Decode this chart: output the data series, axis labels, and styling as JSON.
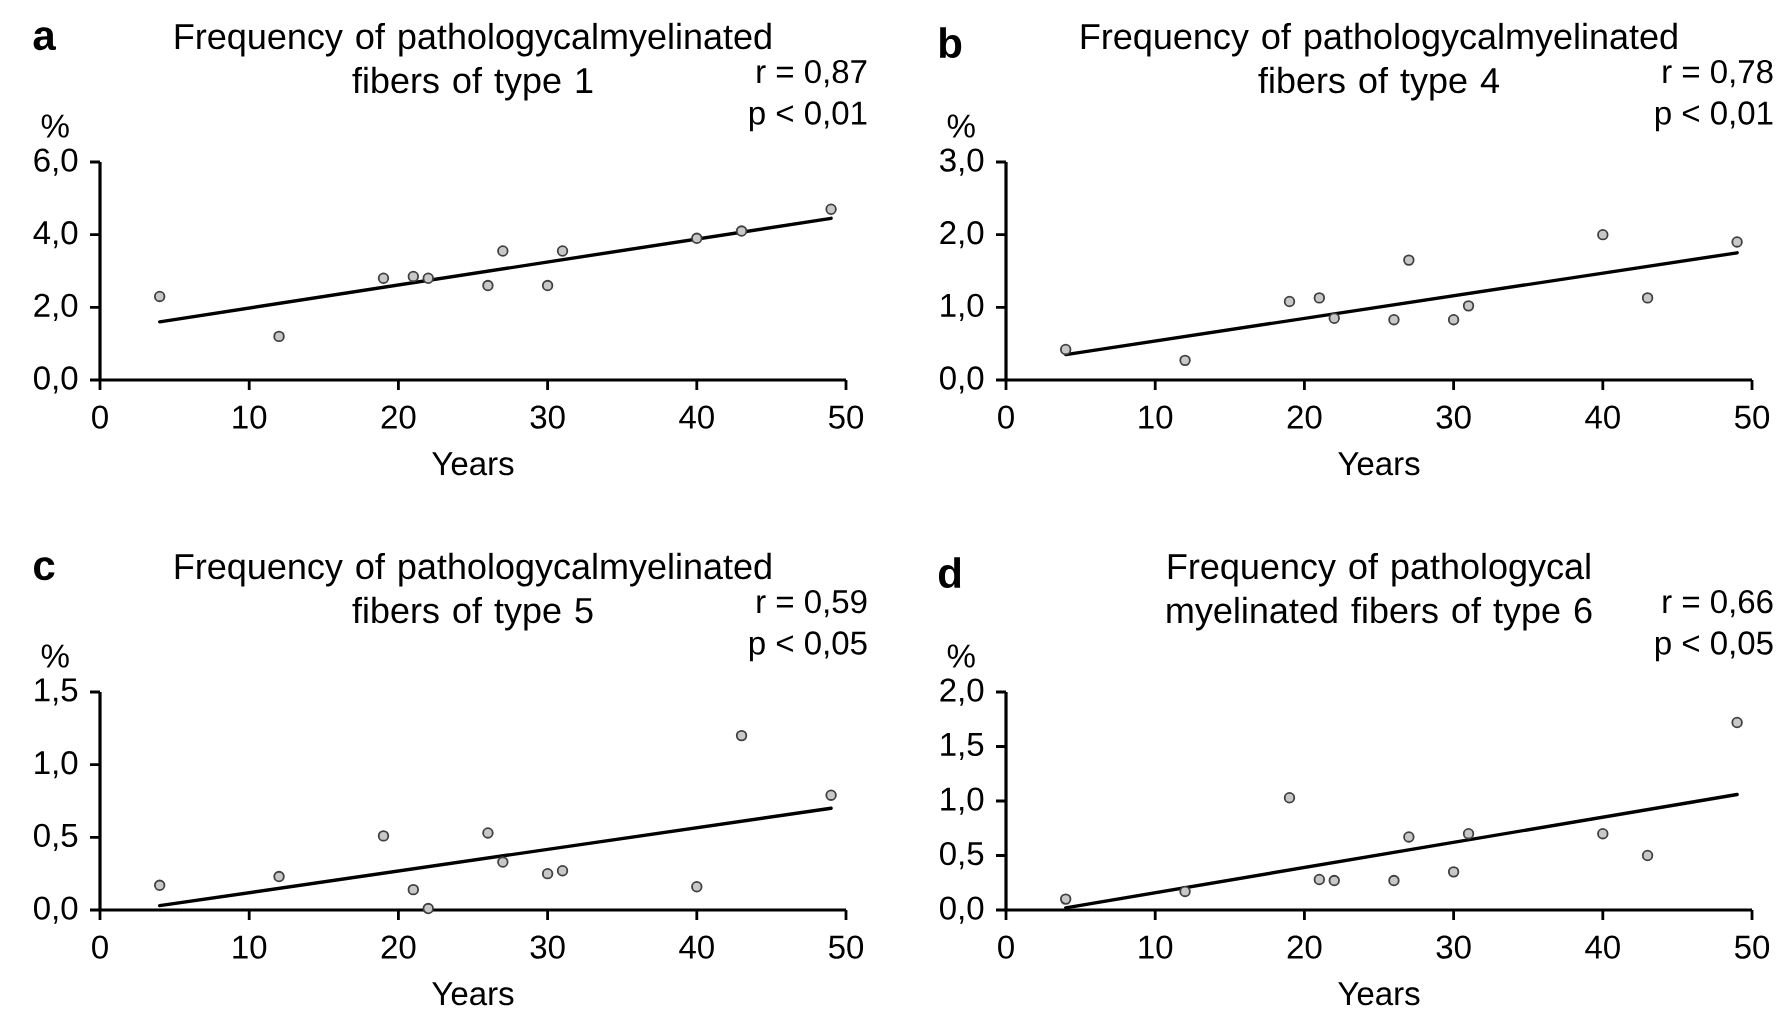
{
  "chart_data": [
    {
      "type": "scatter",
      "title": "Frequency of pathologycalmyelinated fibers of type 1",
      "xlabel": "Years",
      "ylabel": "%",
      "xlim": [
        0,
        50
      ],
      "ylim": [
        0,
        6
      ],
      "xticks": [
        0,
        10,
        20,
        30,
        40,
        50
      ],
      "yticks": [
        {
          "value": 0,
          "label": "0,0"
        },
        {
          "value": 2,
          "label": "2,0"
        },
        {
          "value": 4,
          "label": "4,0"
        },
        {
          "value": 6,
          "label": "6,0"
        }
      ],
      "annotations": [
        "a",
        "r = 0,87",
        "p < 0,01"
      ],
      "series": [
        {
          "color": "#404040",
          "marker": "circle",
          "x": [
            4,
            12,
            19,
            21,
            22,
            26,
            27,
            30,
            31,
            40,
            43,
            49
          ],
          "values": [
            2.3,
            1.2,
            2.8,
            2.85,
            2.8,
            2.6,
            3.55,
            2.6,
            3.55,
            3.9,
            4.1,
            4.7
          ]
        },
        {
          "type": "line",
          "color": "#000000",
          "marker": "none",
          "line_style": "solid",
          "x": [
            4,
            49
          ],
          "values": [
            1.6,
            4.45
          ]
        }
      ]
    },
    {
      "type": "scatter",
      "title": "Frequency of pathologycalmyelinated fibers of type 4",
      "xlabel": "Years",
      "ylabel": "%",
      "xlim": [
        0,
        50
      ],
      "ylim": [
        0,
        3
      ],
      "xticks": [
        0,
        10,
        20,
        30,
        40,
        50
      ],
      "yticks": [
        {
          "value": 0,
          "label": "0,0"
        },
        {
          "value": 1,
          "label": "1,0"
        },
        {
          "value": 2,
          "label": "2,0"
        },
        {
          "value": 3,
          "label": "3,0"
        }
      ],
      "annotations": [
        "b",
        "r = 0,78",
        "p < 0,01"
      ],
      "series": [
        {
          "color": "#404040",
          "marker": "circle",
          "x": [
            4,
            12,
            19,
            21,
            22,
            26,
            27,
            30,
            31,
            40,
            43,
            49
          ],
          "values": [
            0.42,
            0.27,
            1.08,
            1.13,
            0.85,
            0.83,
            1.65,
            0.83,
            1.02,
            2.0,
            1.13,
            1.9
          ]
        },
        {
          "type": "line",
          "color": "#000000",
          "marker": "none",
          "line_style": "solid",
          "x": [
            4,
            49
          ],
          "values": [
            0.35,
            1.75
          ]
        }
      ]
    },
    {
      "type": "scatter",
      "title": "Frequency of pathologycalmyelinated fibers of type 5",
      "xlabel": "Years",
      "ylabel": "%",
      "xlim": [
        0,
        50
      ],
      "ylim": [
        0,
        1.5
      ],
      "xticks": [
        0,
        10,
        20,
        30,
        40,
        50
      ],
      "yticks": [
        {
          "value": 0,
          "label": "0,0"
        },
        {
          "value": 0.5,
          "label": "0,5"
        },
        {
          "value": 1,
          "label": "1,0"
        },
        {
          "value": 1.5,
          "label": "1,5"
        }
      ],
      "annotations": [
        "c",
        "r = 0,59",
        "p < 0,05"
      ],
      "series": [
        {
          "color": "#404040",
          "marker": "circle",
          "x": [
            4,
            12,
            19,
            21,
            22,
            26,
            27,
            30,
            31,
            40,
            43,
            49
          ],
          "values": [
            0.17,
            0.23,
            0.51,
            0.14,
            0.01,
            0.53,
            0.33,
            0.25,
            0.27,
            0.16,
            1.2,
            0.79
          ]
        },
        {
          "type": "line",
          "color": "#000000",
          "marker": "none",
          "line_style": "solid",
          "x": [
            4,
            49
          ],
          "values": [
            0.03,
            0.7
          ]
        }
      ]
    },
    {
      "type": "scatter",
      "title": "Frequency of pathologycal myelinated fibers of type 6",
      "xlabel": "Years",
      "ylabel": "%",
      "xlim": [
        0,
        50
      ],
      "ylim": [
        0,
        2
      ],
      "xticks": [
        0,
        10,
        20,
        30,
        40,
        50
      ],
      "yticks": [
        {
          "value": 0,
          "label": "0,0"
        },
        {
          "value": 0.5,
          "label": "0,5"
        },
        {
          "value": 1,
          "label": "1,0"
        },
        {
          "value": 1.5,
          "label": "1,5"
        },
        {
          "value": 2,
          "label": "2,0"
        }
      ],
      "annotations": [
        "d",
        "r = 0,66",
        "p < 0,05"
      ],
      "series": [
        {
          "color": "#404040",
          "marker": "circle",
          "x": [
            4,
            12,
            19,
            21,
            22,
            26,
            27,
            30,
            31,
            40,
            43,
            49
          ],
          "values": [
            0.1,
            0.17,
            1.03,
            0.28,
            0.27,
            0.27,
            0.67,
            0.35,
            0.7,
            0.7,
            0.5,
            1.72
          ]
        },
        {
          "type": "line",
          "color": "#000000",
          "marker": "none",
          "line_style": "solid",
          "x": [
            4,
            49
          ],
          "values": [
            0.02,
            1.06
          ]
        }
      ]
    }
  ]
}
